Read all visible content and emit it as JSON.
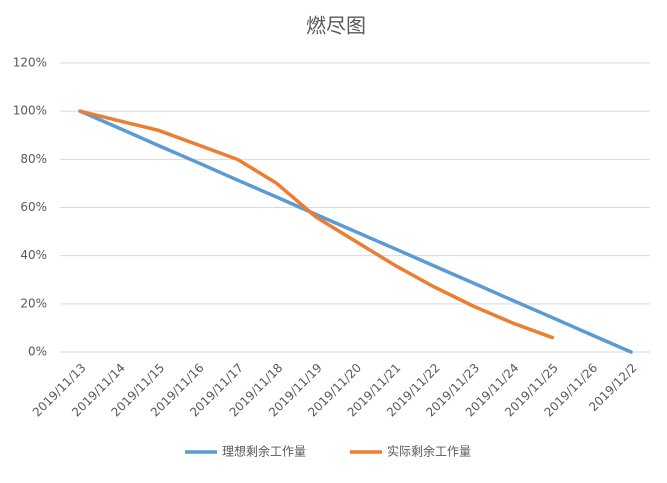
{
  "chart_data": {
    "type": "line",
    "title": "燃尽图",
    "categories": [
      "2019/11/13",
      "2019/11/14",
      "2019/11/15",
      "2019/11/16",
      "2019/11/17",
      "2019/11/18",
      "2019/11/19",
      "2019/11/20",
      "2019/11/21",
      "2019/11/22",
      "2019/11/23",
      "2019/11/24",
      "2019/11/25",
      "2019/11/26",
      "2019/12/2"
    ],
    "series": [
      {
        "name": "理想剩余工作量",
        "color": "#5b9bd5",
        "values": [
          100,
          92.9,
          85.7,
          78.6,
          71.4,
          64.3,
          57.1,
          50,
          42.9,
          35.7,
          28.6,
          21.4,
          14.3,
          7.1,
          0
        ]
      },
      {
        "name": "实际剩余工作量",
        "color": "#ed7d31",
        "values": [
          100,
          96,
          92,
          86,
          80,
          70,
          56,
          46,
          36,
          27,
          19,
          12,
          6,
          null,
          null
        ]
      }
    ],
    "ylim": [
      0,
      120
    ],
    "yticks": [
      {
        "value": 0,
        "label": "0%"
      },
      {
        "value": 20,
        "label": "20%"
      },
      {
        "value": 40,
        "label": "40%"
      },
      {
        "value": 60,
        "label": "60%"
      },
      {
        "value": 80,
        "label": "80%"
      },
      {
        "value": 100,
        "label": "100%"
      },
      {
        "value": 120,
        "label": "120%"
      }
    ],
    "grid": true,
    "legend": "bottom"
  }
}
